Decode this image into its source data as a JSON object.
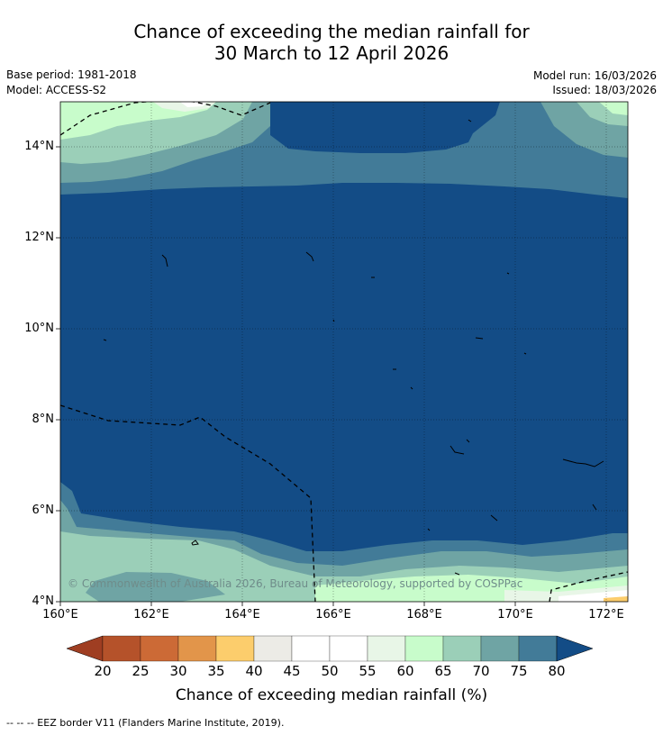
{
  "title": {
    "line1": "Chance of exceeding the median rainfall for",
    "line2": "30 March to 12 April 2026"
  },
  "meta": {
    "base_period": "Base period: 1981-2018",
    "model": "Model: ACCESS-S2",
    "model_run": "Model run: 16/03/2026",
    "issued": "Issued: 18/03/2026"
  },
  "axes": {
    "lat_ticks": [
      "14°N",
      "12°N",
      "10°N",
      "8°N",
      "6°N",
      "4°N"
    ],
    "lon_ticks": [
      "160°E",
      "162°E",
      "164°E",
      "166°E",
      "168°E",
      "170°E",
      "172°E"
    ]
  },
  "colorbar": {
    "labels": [
      "20",
      "25",
      "30",
      "35",
      "40",
      "45",
      "50",
      "55",
      "60",
      "65",
      "70",
      "75",
      "80"
    ],
    "colors": [
      "#b5522a",
      "#cc6a36",
      "#e2954a",
      "#fccd6c",
      "#ecebe6",
      "#ffffff",
      "#ffffff",
      "#e8f6e7",
      "#c8fccb",
      "#9bcfb8",
      "#6fa4a4",
      "#427b98",
      "#134c86"
    ],
    "low_arrow_color": "#9f3e22",
    "high_arrow_color": "#134c86",
    "title": "Chance of exceeding median rainfall (%)"
  },
  "copyright": "© Commonwealth of Australia 2026, Bureau of Meteorology, supported by COSPPac",
  "footer": "--  --  -- EEZ border V11 (Flanders Marine Institute, 2019)."
}
